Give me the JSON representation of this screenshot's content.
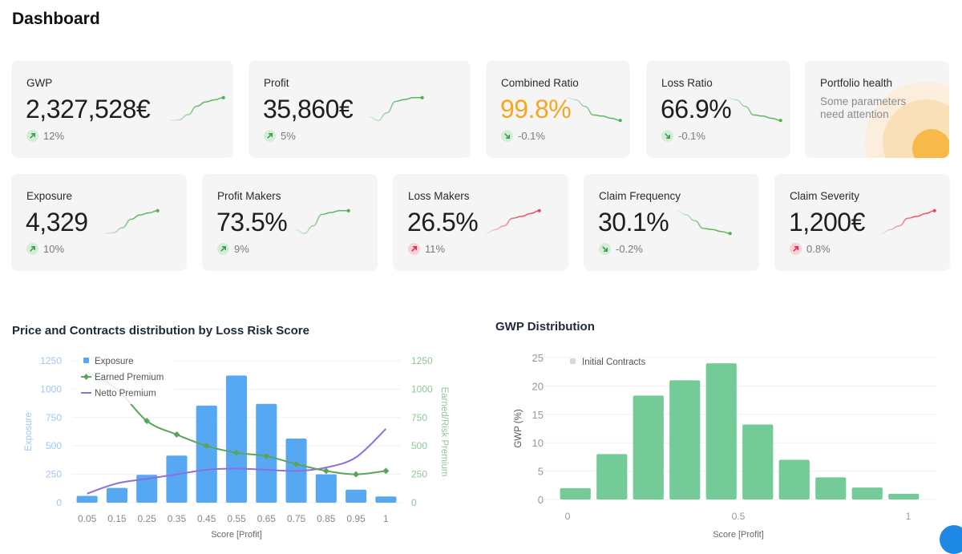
{
  "page": {
    "title": "Dashboard"
  },
  "kpis_row1": [
    {
      "id": "gwp",
      "label": "GWP",
      "value": "2,327,528€",
      "change": "12%",
      "direction": "up",
      "sentiment": "good",
      "spark": [
        2,
        3,
        10,
        22,
        28,
        31,
        34
      ],
      "spark_color": "#4caf50",
      "value_style": "normal"
    },
    {
      "id": "profit",
      "label": "Profit",
      "value": "35,860€",
      "change": "5%",
      "direction": "up",
      "sentiment": "good",
      "spark": [
        10,
        8,
        12,
        18,
        19,
        20,
        20
      ],
      "spark_color": "#4caf50",
      "value_style": "normal"
    },
    {
      "id": "combined-ratio",
      "label": "Combined Ratio",
      "value": "99.8%",
      "change": "-0.1%",
      "direction": "down",
      "sentiment": "good",
      "spark": [
        30,
        28,
        22,
        14,
        13,
        11,
        9
      ],
      "spark_color": "#4caf50",
      "value_style": "warn"
    },
    {
      "id": "loss-ratio",
      "label": "Loss Ratio",
      "value": "66.9%",
      "change": "-0.1%",
      "direction": "down",
      "sentiment": "good",
      "spark": [
        30,
        28,
        22,
        14,
        13,
        11,
        9
      ],
      "spark_color": "#4caf50",
      "value_style": "normal"
    }
  ],
  "portfolio_health": {
    "label": "Portfolio health",
    "description": "Some parameters need attention",
    "status_color": "#f6b94a"
  },
  "kpis_row2": [
    {
      "id": "exposure",
      "label": "Exposure",
      "value": "4,329",
      "change": "10%",
      "direction": "up",
      "sentiment": "good",
      "spark": [
        2,
        3,
        10,
        22,
        28,
        31,
        34
      ],
      "spark_color": "#4caf50",
      "value_style": "normal"
    },
    {
      "id": "profit-makers",
      "label": "Profit Makers",
      "value": "73.5%",
      "change": "9%",
      "direction": "up",
      "sentiment": "good",
      "spark": [
        10,
        8,
        12,
        18,
        19,
        20,
        20
      ],
      "spark_color": "#4caf50",
      "value_style": "normal"
    },
    {
      "id": "loss-makers",
      "label": "Loss Makers",
      "value": "26.5%",
      "change": "11%",
      "direction": "up",
      "sentiment": "bad",
      "spark": [
        4,
        8,
        12,
        20,
        22,
        25,
        28
      ],
      "spark_color": "#e8455e",
      "value_style": "normal"
    },
    {
      "id": "claim-frequency",
      "label": "Claim Frequency",
      "value": "30.1%",
      "change": "-0.2%",
      "direction": "down",
      "sentiment": "good",
      "spark": [
        32,
        28,
        22,
        14,
        13,
        11,
        9
      ],
      "spark_color": "#4caf50",
      "value_style": "normal"
    },
    {
      "id": "claim-severity",
      "label": "Claim Severity",
      "value": "1,200€",
      "change": "0.8%",
      "direction": "up",
      "sentiment": "bad",
      "spark": [
        4,
        8,
        12,
        20,
        22,
        25,
        28
      ],
      "spark_color": "#e8455e",
      "value_style": "normal"
    }
  ],
  "colors": {
    "good": "#3aa04a",
    "bad": "#e8284a",
    "warn": "#f5a623",
    "exposure": "#57a8f2",
    "earned": "#5aa45e",
    "netto": "#8b6fe0",
    "gwp_bar": "#74cb97"
  },
  "chart_data": [
    {
      "type": "bar",
      "title": "Price and Contracts distribution by Loss Risk Score",
      "xlabel": "Score [Profit]",
      "ylabel": "Exposure",
      "ylabel_right": "Earned/Risk Premium",
      "categories": [
        "0.05",
        "0.15",
        "0.25",
        "0.35",
        "0.45",
        "0.55",
        "0.65",
        "0.75",
        "0.85",
        "0.95",
        "1"
      ],
      "ylim": [
        0,
        1250
      ],
      "ylim_right": [
        0,
        1250
      ],
      "yticks": [
        0,
        250,
        500,
        750,
        1000,
        1250
      ],
      "grid": true,
      "legend_position": "top-left",
      "series": [
        {
          "name": "Exposure",
          "type": "bar",
          "axis": "left",
          "values": [
            60,
            130,
            245,
            415,
            855,
            1120,
            870,
            565,
            250,
            115,
            55
          ]
        },
        {
          "name": "Earned Premium",
          "type": "line",
          "axis": "right",
          "markers": true,
          "values": [
            1150,
            1000,
            720,
            600,
            500,
            440,
            410,
            340,
            280,
            250,
            280
          ]
        },
        {
          "name": "Netto Premium",
          "type": "line",
          "axis": "right",
          "markers": false,
          "values": [
            80,
            170,
            210,
            250,
            290,
            300,
            290,
            280,
            310,
            400,
            650
          ]
        }
      ]
    },
    {
      "type": "bar",
      "title": "GWP Distribution",
      "xlabel": "Score [Profit]",
      "ylabel": "GWP (%)",
      "x_ticks": [
        "0",
        "0.5",
        "1"
      ],
      "ylim": [
        0,
        25
      ],
      "yticks": [
        0,
        5,
        10,
        15,
        20,
        25
      ],
      "grid": true,
      "legend_position": "top-left",
      "series": [
        {
          "name": "Initial Contracts",
          "values": [
            2,
            8,
            18.3,
            21,
            24,
            13.2,
            7,
            3.9,
            2.1,
            1
          ]
        }
      ]
    }
  ]
}
